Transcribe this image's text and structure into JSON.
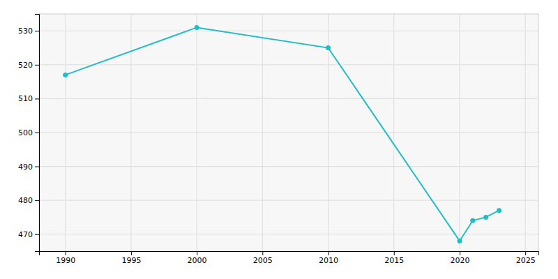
{
  "chart_data": {
    "type": "line",
    "x": [
      1990,
      2000,
      2010,
      2020,
      2021,
      2022,
      2023
    ],
    "values": [
      517,
      531,
      525,
      468,
      474,
      475,
      477
    ],
    "color": "#22BDC6",
    "marker": "circle",
    "xlim": [
      1988,
      2026
    ],
    "ylim": [
      465,
      535
    ],
    "xticks": [
      1990,
      1995,
      2000,
      2005,
      2010,
      2015,
      2020,
      2025
    ],
    "yticks": [
      470,
      480,
      490,
      500,
      510,
      520,
      530
    ],
    "grid": true
  }
}
